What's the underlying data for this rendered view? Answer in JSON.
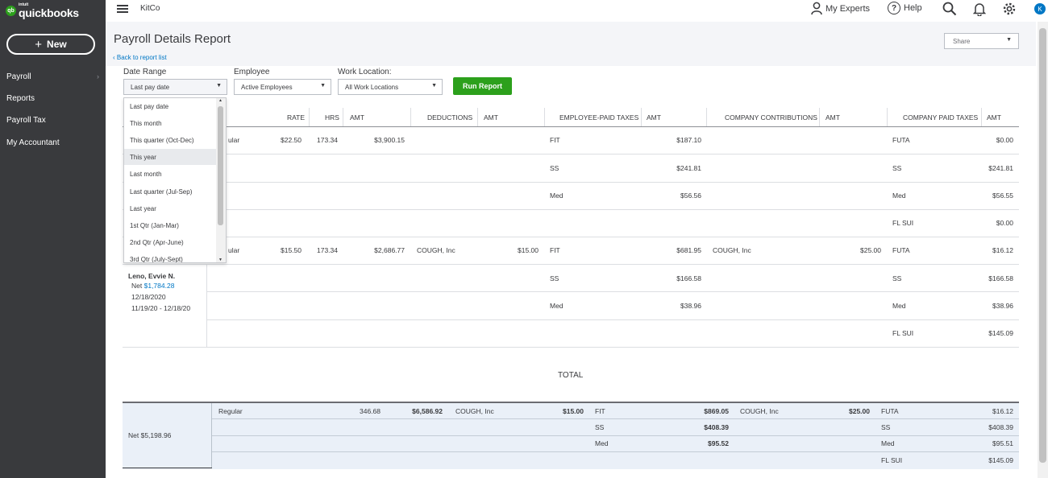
{
  "app": {
    "brand_small": "intuit",
    "brand": "quickbooks",
    "logo_mark": "qb",
    "company": "KitCo",
    "avatar_letter": "K"
  },
  "sidebar": {
    "new_label": "New",
    "items": [
      {
        "label": "Payroll",
        "has_chevron": true
      },
      {
        "label": "Reports",
        "has_chevron": false
      },
      {
        "label": "Payroll Tax",
        "has_chevron": false
      },
      {
        "label": "My Accountant",
        "has_chevron": false
      }
    ]
  },
  "topbar": {
    "experts": "My Experts",
    "help": "Help"
  },
  "page": {
    "title": "Payroll Details Report",
    "back": "Back to report list",
    "share": "Share"
  },
  "filters": {
    "date_range_label": "Date Range",
    "date_range_value": "Last pay date",
    "employee_label": "Employee",
    "employee_value": "Active Employees",
    "location_label": "Work Location:",
    "location_value": "All Work Locations",
    "run": "Run Report"
  },
  "dropdown": {
    "options": [
      "Last pay date",
      "This month",
      "This quarter (Oct-Dec)",
      "This year",
      "Last month",
      "Last quarter (Jul-Sep)",
      "Last year",
      "1st Qtr (Jan-Mar)",
      "2nd Qtr (Apr-June)",
      "3rd Qtr (July-Sept)"
    ],
    "highlighted": "This year"
  },
  "table": {
    "headers": {
      "rate": "RATE",
      "hrs": "HRS",
      "amt": "AMT",
      "deductions": "DEDUCTIONS",
      "amt2": "AMT",
      "emp_taxes": "EMPLOYEE-PAID TAXES",
      "amt3": "AMT",
      "contrib": "COMPANY CONTRIBUTIONS",
      "amt4": "AMT",
      "comp_taxes": "COMPANY PAID TAXES",
      "amt5": "AMT"
    },
    "emp1": {
      "pay_type": "ular",
      "rate": "$22.50",
      "hrs": "173.34",
      "amt": "$3,900.15",
      "emp_taxes": [
        {
          "name": "FIT",
          "amt": "$187.10"
        },
        {
          "name": "SS",
          "amt": "$241.81"
        },
        {
          "name": "Med",
          "amt": "$56.56"
        }
      ],
      "comp_taxes": [
        {
          "name": "FUTA",
          "amt": "$0.00"
        },
        {
          "name": "SS",
          "amt": "$241.81"
        },
        {
          "name": "Med",
          "amt": "$56.55"
        },
        {
          "name": "FL SUI",
          "amt": "$0.00"
        }
      ]
    },
    "emp2": {
      "name": "Leno, Evvie N.",
      "net_label": "Net",
      "net": "$1,784.28",
      "date": "12/18/2020",
      "period": "11/19/20 -  12/18/20",
      "pay_type": "ular",
      "rate": "$15.50",
      "hrs": "173.34",
      "amt": "$2,686.77",
      "deduction": "COUGH, Inc",
      "deduction_amt": "$15.00",
      "contrib": "COUGH, Inc",
      "contrib_amt": "$25.00",
      "emp_taxes": [
        {
          "name": "FIT",
          "amt": "$681.95"
        },
        {
          "name": "SS",
          "amt": "$166.58"
        },
        {
          "name": "Med",
          "amt": "$38.96"
        }
      ],
      "comp_taxes": [
        {
          "name": "FUTA",
          "amt": "$16.12"
        },
        {
          "name": "SS",
          "amt": "$166.58"
        },
        {
          "name": "Med",
          "amt": "$38.96"
        },
        {
          "name": "FL SUI",
          "amt": "$145.09"
        }
      ]
    }
  },
  "totals": {
    "label": "TOTAL",
    "net": "Net $5,198.96",
    "pay_type": "Regular",
    "hrs": "346.68",
    "amt": "$6,586.92",
    "deduction": "COUGH, Inc",
    "deduction_amt": "$15.00",
    "contrib": "COUGH, Inc",
    "contrib_amt": "$25.00",
    "emp_taxes": [
      {
        "name": "FIT",
        "amt": "$869.05"
      },
      {
        "name": "SS",
        "amt": "$408.39"
      },
      {
        "name": "Med",
        "amt": "$95.52"
      }
    ],
    "comp_taxes": [
      {
        "name": "FUTA",
        "amt": "$16.12"
      },
      {
        "name": "SS",
        "amt": "$408.39"
      },
      {
        "name": "Med",
        "amt": "$95.51"
      },
      {
        "name": "FL SUI",
        "amt": "$145.09"
      }
    ]
  },
  "colors": {
    "sidebar": "#393a3d",
    "accent": "#2ca01c",
    "link": "#0077c5"
  }
}
